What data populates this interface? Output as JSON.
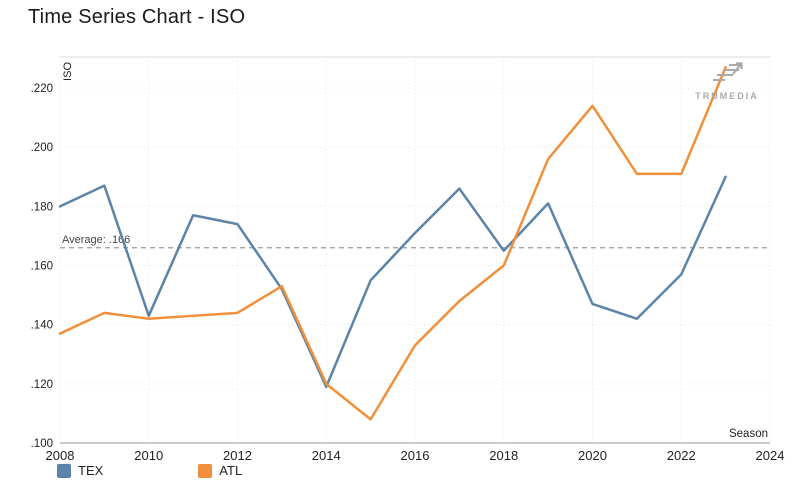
{
  "page": {
    "title": "Time Series Chart - ISO"
  },
  "branding": {
    "name": "TRUMEDIA"
  },
  "colors": {
    "tex": "#5b84a8",
    "atl": "#f18f3b",
    "grid": "#e4e4e4",
    "axis": "#999999",
    "average": "#9a9a9a",
    "tick_text": "#222222"
  },
  "chart_data": {
    "type": "line",
    "title": "Time Series Chart - ISO",
    "xlabel": "Season",
    "ylabel": "ISO",
    "x": [
      2008,
      2009,
      2010,
      2011,
      2012,
      2013,
      2014,
      2015,
      2016,
      2017,
      2018,
      2019,
      2020,
      2021,
      2022,
      2023
    ],
    "series": [
      {
        "name": "TEX",
        "color": "#5b84a8",
        "values": [
          0.18,
          0.187,
          0.143,
          0.177,
          0.174,
          0.152,
          0.119,
          0.155,
          0.171,
          0.186,
          0.165,
          0.181,
          0.147,
          0.142,
          0.157,
          0.19
        ]
      },
      {
        "name": "ATL",
        "color": "#f18f3b",
        "values": [
          0.137,
          0.144,
          0.142,
          0.143,
          0.144,
          0.153,
          0.12,
          0.108,
          0.133,
          0.148,
          0.16,
          0.196,
          0.214,
          0.191,
          0.191,
          0.227
        ]
      }
    ],
    "average": {
      "value": 0.166,
      "label": "Average: .166"
    },
    "xlim": [
      2008,
      2024
    ],
    "ylim": [
      0.1,
      0.2305
    ],
    "xticks": [
      2008,
      2010,
      2012,
      2014,
      2016,
      2018,
      2020,
      2022,
      2024
    ],
    "yticks": [
      0.1,
      0.12,
      0.14,
      0.16,
      0.18,
      0.2,
      0.22
    ],
    "grid": true,
    "legend_position": "bottom-left"
  }
}
